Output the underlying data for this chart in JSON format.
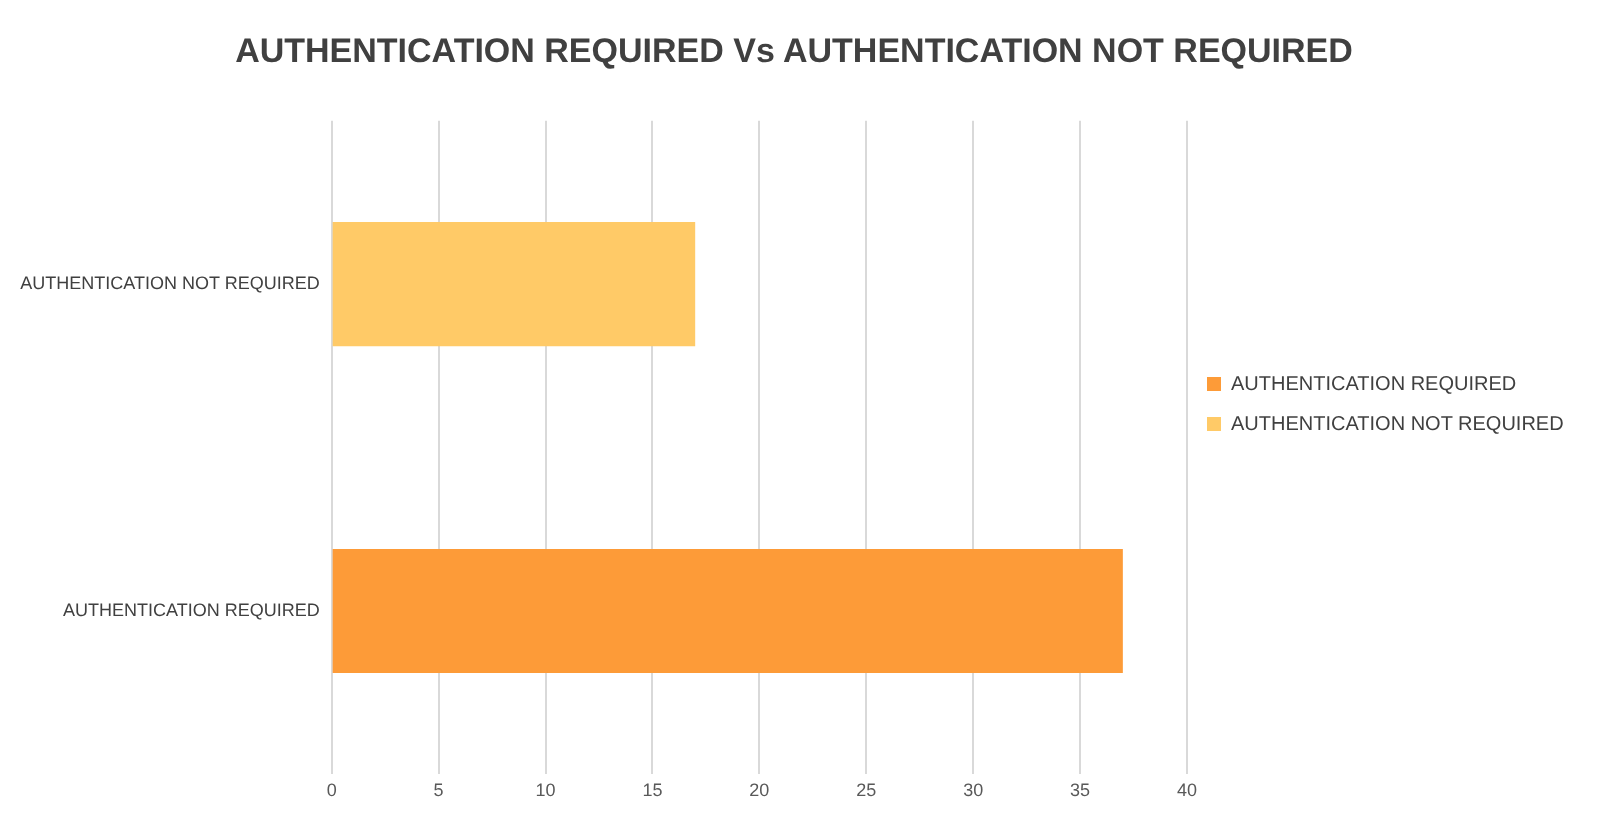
{
  "chart_data": {
    "type": "bar",
    "orientation": "horizontal",
    "title": "AUTHENTICATION REQUIRED Vs AUTHENTICATION NOT REQUIRED",
    "categories": [
      "AUTHENTICATION NOT REQUIRED",
      "AUTHENTICATION REQUIRED"
    ],
    "series": [
      {
        "name": "AUTHENTICATION REQUIRED",
        "color": "#fd9b38",
        "values": [
          null,
          37
        ]
      },
      {
        "name": "AUTHENTICATION NOT REQUIRED",
        "color": "#ffca67",
        "values": [
          17,
          null
        ]
      }
    ],
    "xlim": [
      0,
      40
    ],
    "xticks": [
      0,
      5,
      10,
      15,
      20,
      25,
      30,
      35,
      40
    ],
    "grid": "x",
    "legend": "right"
  }
}
